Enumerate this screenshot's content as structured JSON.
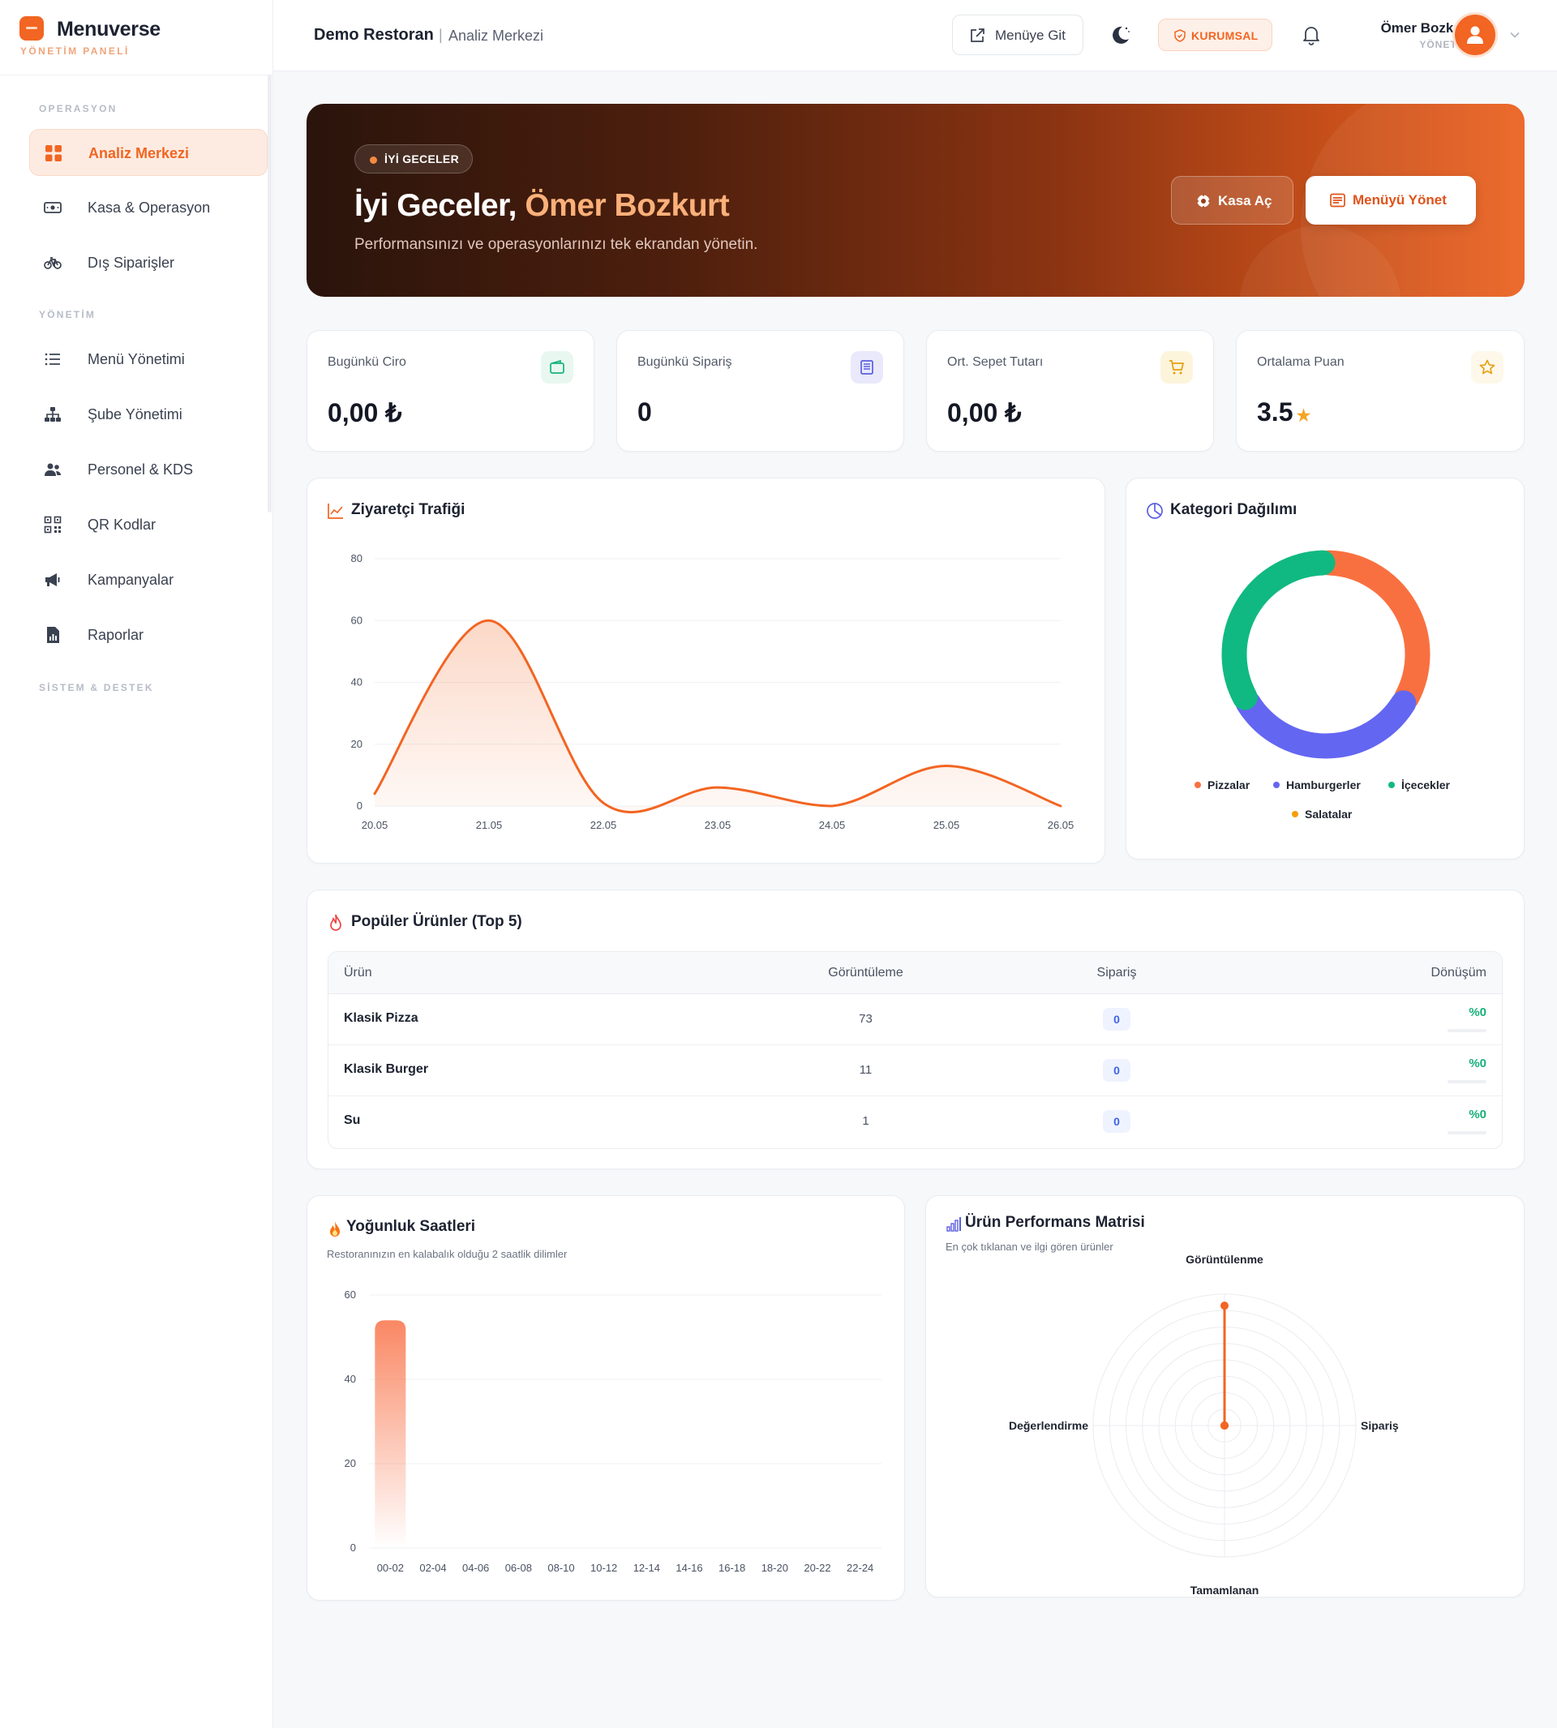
{
  "brand": {
    "name": "Menuverse",
    "subtitle": "YÖNETİM PANELİ"
  },
  "sidebar": {
    "sections": [
      {
        "title": "OPERASYON",
        "items": [
          {
            "label": "Analiz Merkezi",
            "icon": "grid-icon",
            "active": true
          },
          {
            "label": "Kasa & Operasyon",
            "icon": "cash-icon"
          },
          {
            "label": "Dış Siparişler",
            "icon": "bicycle-icon"
          }
        ]
      },
      {
        "title": "YÖNETİM",
        "items": [
          {
            "label": "Menü Yönetimi",
            "icon": "list-icon"
          },
          {
            "label": "Şube Yönetimi",
            "icon": "sitemap-icon"
          },
          {
            "label": "Personel & KDS",
            "icon": "users-icon"
          },
          {
            "label": "QR Kodlar",
            "icon": "qr-icon"
          },
          {
            "label": "Kampanyalar",
            "icon": "megaphone-icon"
          },
          {
            "label": "Raporlar",
            "icon": "report-icon"
          }
        ]
      },
      {
        "title": "SİSTEM & DESTEK",
        "items": []
      }
    ]
  },
  "header": {
    "restaurant": "Demo Restoran",
    "separator": "|",
    "page": "Analiz Merkezi",
    "menu_button": "Menüye Git",
    "plan_badge": "KURUMSAL",
    "user_name": "Ömer Bozkurt",
    "user_role": "YÖNETİCİ"
  },
  "hero": {
    "pill": "İYİ GECELER",
    "greeting": "İyi Geceler,",
    "name": "Ömer Bozkurt",
    "description": "Performansınızı ve operasyonlarınızı tek ekrandan yönetin.",
    "btn_kasa": "Kasa Aç",
    "btn_menu": "Menüyü Yönet"
  },
  "stats": [
    {
      "label": "Bugünkü Ciro",
      "value": "0,00 ₺",
      "icon": "wallet-icon",
      "color": "#16b37e",
      "bg": "#e8f8f1"
    },
    {
      "label": "Bugünkü Sipariş",
      "value": "0",
      "icon": "receipt-icon",
      "color": "#5b5fe0",
      "bg": "#e9e9fb"
    },
    {
      "label": "Ort. Sepet Tutarı",
      "value": "0,00 ₺",
      "icon": "cart-icon",
      "color": "#e5a010",
      "bg": "#fdf4dc"
    },
    {
      "label": "Ortalama Puan",
      "value": "3.5",
      "icon": "star-icon",
      "color": "#e5a010",
      "bg": "#fdf8ea"
    }
  ],
  "traffic": {
    "title": "Ziyaretçi Trafiği",
    "chart_data": {
      "type": "area",
      "x": [
        "20.05",
        "21.05",
        "22.05",
        "23.05",
        "24.05",
        "25.05",
        "26.05"
      ],
      "series": [
        {
          "values": [
            4,
            60,
            1,
            6,
            0,
            13,
            0
          ]
        }
      ],
      "ylim": [
        0,
        80
      ],
      "yticks": [
        0,
        20,
        40,
        60,
        80
      ],
      "grid": true,
      "color": "#f26522"
    }
  },
  "category": {
    "title": "Kategori Dağılımı",
    "chart_data": {
      "type": "pie",
      "categories": [
        "Pizzalar",
        "Hamburgerler",
        "İçecekler",
        "Salatalar"
      ],
      "values": [
        1,
        1,
        1,
        0
      ],
      "colors": [
        "#f97040",
        "#6366f1",
        "#10b981",
        "#f59e0b"
      ],
      "legend": "bottom"
    }
  },
  "popular": {
    "title": "Popüler Ürünler (Top 5)",
    "columns": [
      "Ürün",
      "Görüntüleme",
      "Sipariş",
      "Dönüşüm"
    ],
    "rows": [
      {
        "name": "Klasik Pizza",
        "views": "73",
        "orders": "0",
        "conversion": "%0"
      },
      {
        "name": "Klasik Burger",
        "views": "11",
        "orders": "0",
        "conversion": "%0"
      },
      {
        "name": "Su",
        "views": "1",
        "orders": "0",
        "conversion": "%0"
      }
    ]
  },
  "busy": {
    "title": "Yoğunluk Saatleri",
    "subtitle": "Restoranınızın en kalabalık olduğu 2 saatlik dilimler",
    "chart_data": {
      "type": "bar",
      "categories": [
        "00-02",
        "02-04",
        "04-06",
        "06-08",
        "08-10",
        "10-12",
        "12-14",
        "14-16",
        "16-18",
        "18-20",
        "20-22",
        "22-24"
      ],
      "values": [
        54,
        0,
        0,
        0,
        0,
        0,
        0,
        0,
        0,
        0,
        0,
        0
      ],
      "ylim": [
        0,
        60
      ],
      "yticks": [
        0,
        20,
        40,
        60
      ],
      "grid": true,
      "color": "#f97a52"
    }
  },
  "matrix": {
    "title": "Ürün Performans Matrisi",
    "subtitle": "En çok tıklanan ve ilgi gören ürünler",
    "chart_data": {
      "type": "radar",
      "axes": [
        "Görüntülenme",
        "Sipariş",
        "Tamamlanan",
        "Değerlendirme"
      ],
      "values": [
        73,
        0,
        0,
        0
      ],
      "max": 80,
      "color": "#f26522"
    }
  }
}
